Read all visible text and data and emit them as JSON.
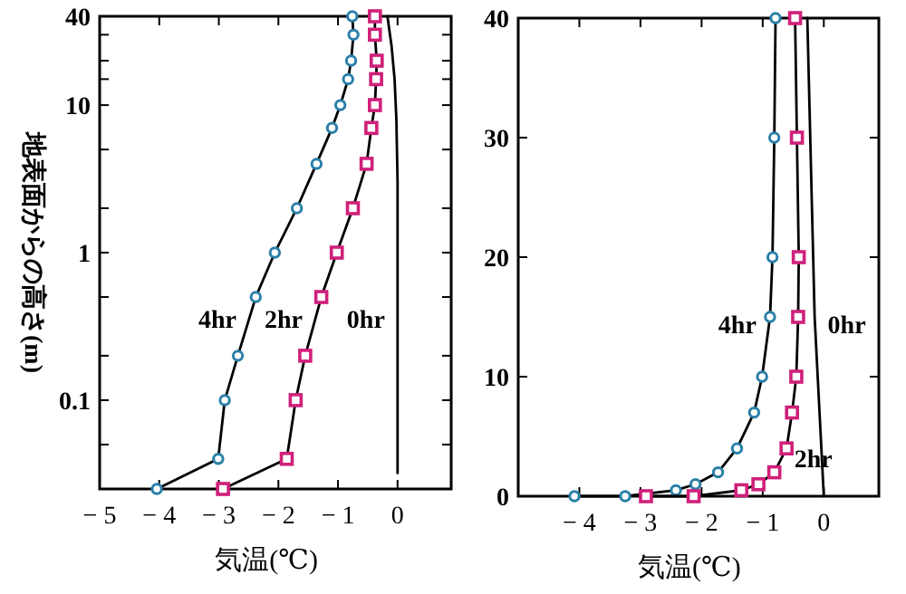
{
  "chart_data": [
    {
      "type": "line",
      "log": "y",
      "xlabel": "気温(℃)",
      "ylabel": "地表面からの高さ(m)",
      "xlim": [
        -5,
        0.9
      ],
      "xticks": [
        -5,
        -4,
        -3,
        -2,
        -1,
        0
      ],
      "ylim": [
        0.025,
        40
      ],
      "yticks": [
        {
          "value": 0.05,
          "label": null
        },
        0.1,
        {
          "value": 0.2,
          "label": null
        },
        {
          "value": 0.5,
          "label": null
        },
        1,
        {
          "value": 2,
          "label": null
        },
        {
          "value": 5,
          "label": null
        },
        10,
        {
          "value": 15,
          "label": null
        },
        {
          "value": 20,
          "label": null
        },
        {
          "value": 30,
          "label": null
        },
        40
      ],
      "series": [
        {
          "name": "4hr",
          "color": "#2a7fa8",
          "marker": "circle",
          "x": [
            -0.76,
            -0.74,
            -0.78,
            -0.83,
            -0.96,
            -1.1,
            -1.36,
            -1.69,
            -2.06,
            -2.38,
            -2.68,
            -2.9,
            -3.01,
            -4.04
          ],
          "values": [
            40,
            30,
            20,
            15,
            10,
            7,
            4,
            2,
            1,
            0.5,
            0.2,
            0.1,
            0.04,
            0.025
          ]
        },
        {
          "name": "2hr",
          "color": "#d0207a",
          "marker": "square",
          "x": [
            -0.38,
            -0.38,
            -0.35,
            -0.36,
            -0.38,
            -0.44,
            -0.52,
            -0.75,
            -1.02,
            -1.28,
            -1.55,
            -1.71,
            -1.86,
            -2.93
          ],
          "values": [
            40,
            30,
            20,
            15,
            10,
            7,
            4,
            2,
            1,
            0.5,
            0.2,
            0.1,
            0.04,
            0.025
          ]
        },
        {
          "name": "0hr",
          "color": "#000000",
          "marker": "none",
          "x": [
            -0.17,
            -0.1,
            -0.05,
            -0.02,
            0,
            0
          ],
          "values": [
            40,
            25,
            15,
            8,
            3,
            0.032
          ]
        }
      ],
      "legend": false
    },
    {
      "type": "line",
      "xlabel": "気温(℃)",
      "xlim": [
        -5,
        0.9
      ],
      "xticks": [
        -4,
        -3,
        -2,
        -1,
        0
      ],
      "ylim": [
        0,
        40
      ],
      "yticks": [
        0,
        10,
        20,
        30,
        40
      ],
      "series": [
        {
          "name": "4hr",
          "color": "#2a7fa8",
          "marker": "circle",
          "x": [
            -0.79,
            -0.81,
            -0.84,
            -0.88,
            -1.01,
            -1.14,
            -1.42,
            -1.73,
            -2.1,
            -2.42,
            -3.25,
            -4.08
          ],
          "values": [
            40,
            30,
            20,
            15,
            10,
            7,
            4,
            2,
            1,
            0.5,
            0,
            0
          ]
        },
        {
          "name": "2hr",
          "color": "#d0207a",
          "marker": "square",
          "x": [
            -0.47,
            -0.44,
            -0.41,
            -0.42,
            -0.45,
            -0.52,
            -0.61,
            -0.81,
            -1.07,
            -1.35,
            -2.13,
            -2.91
          ],
          "values": [
            40,
            30,
            20,
            15,
            10,
            7,
            4,
            2,
            1,
            0.5,
            0,
            0
          ]
        },
        {
          "name": "0hr",
          "color": "#000000",
          "marker": "none",
          "x": [
            -0.27,
            -0.15,
            -0.05,
            0
          ],
          "values": [
            40,
            15,
            5,
            0
          ]
        }
      ],
      "legend": false
    }
  ]
}
